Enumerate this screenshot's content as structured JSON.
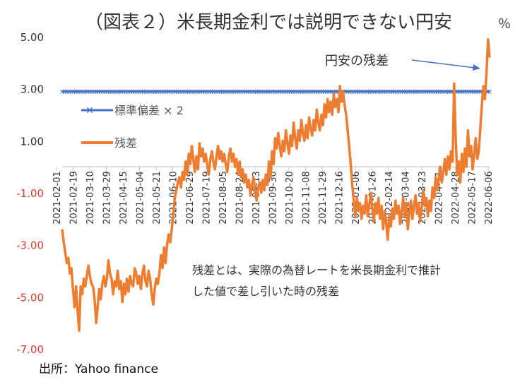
{
  "chart_data": {
    "type": "line",
    "title": "（図表２）米長期金利では説明できない円安",
    "unit_label": "％",
    "source": "出所：Yahoo finance",
    "annotation_arrow": "円安の残差",
    "note_line1": "残差とは、実際の為替レートを米長期金利で推計",
    "note_line2": "した値で差し引いた時の残差",
    "ylim": [
      -7,
      5
    ],
    "y_ticks": [
      "5.00",
      "3.00",
      "1.00",
      "-1.00",
      "-3.00",
      "-5.00",
      "-7.00"
    ],
    "y_tick_values": [
      5,
      3,
      1,
      -1,
      -3,
      -5,
      -7
    ],
    "x_tick_labels": [
      "2021-02-01",
      "2021-02-19",
      "2021-03-10",
      "2021-03-29",
      "2021-04-15",
      "2021-05-04",
      "2021-05-21",
      "2021-06-10",
      "2021-06-29",
      "2021-07-19",
      "2021-08-05",
      "2021-08-24",
      "2021-09-13",
      "2021-09-30",
      "2021-10-20",
      "2021-11-08",
      "2021-11-29",
      "2021-12-16",
      "2022-01-06",
      "2022-01-26",
      "2022-02-14",
      "2022-03-04",
      "2022-03-23",
      "2022-04-11",
      "2022-04-28",
      "2022-05-17",
      "2022-06-06"
    ],
    "series": [
      {
        "name": "標準偏差×２",
        "legend_label": "標準偏差 × 2",
        "color": "#4472C4",
        "marker": "x",
        "values": [
          2.9,
          2.9
        ]
      },
      {
        "name": "残差",
        "legend_label": "残差",
        "color": "#ED7D31",
        "values": [
          -2.4,
          -2.9,
          -3.3,
          -3.7,
          -3.5,
          -4.1,
          -3.9,
          -4.7,
          -5.4,
          -4.6,
          -5.5,
          -6.3,
          -4.6,
          -4.9,
          -4.3,
          -4.6,
          -4.2,
          -3.8,
          -4.2,
          -4.5,
          -4.6,
          -5.1,
          -6.0,
          -5.4,
          -4.7,
          -5.1,
          -4.5,
          -4.2,
          -4.6,
          -4.3,
          -3.6,
          -4.1,
          -4.3,
          -4.9,
          -4.4,
          -4.6,
          -4.0,
          -4.7,
          -4.4,
          -5.2,
          -4.5,
          -4.9,
          -4.3,
          -4.8,
          -4.2,
          -4.5,
          -4.6,
          -3.9,
          -4.1,
          -4.5,
          -4.2,
          -4.7,
          -4.1,
          -3.8,
          -4.4,
          -4.6,
          -4.0,
          -4.3,
          -4.9,
          -5.3,
          -4.7,
          -4.3,
          -4.5,
          -4.1,
          -3.4,
          -3.9,
          -3.1,
          -3.7,
          -3.0,
          -2.6,
          -2.9,
          -2.4,
          -1.8,
          -1.2,
          -0.9,
          -0.6,
          -0.4,
          -0.8,
          -0.2,
          -0.5,
          0.2,
          -0.3,
          0.5,
          0.1,
          0.8,
          0.3,
          -0.2,
          0.4,
          -0.1,
          0.9,
          0.4,
          0.7,
          0.2,
          0.5,
          0.1,
          -0.3,
          0.3,
          0.6,
          0.2,
          -0.1,
          0.4,
          0.8,
          0.3,
          0.6,
          0.2,
          0.5,
          0.1,
          -0.2,
          0.4,
          0.7,
          0.2,
          0.5,
          0.0,
          0.3,
          -0.3,
          0.2,
          -0.4,
          -0.1,
          -0.6,
          -0.3,
          -0.8,
          -0.5,
          -1.1,
          -0.7,
          -0.4,
          -0.9,
          -1.3,
          -0.8,
          -0.6,
          -1.0,
          -0.5,
          -0.9,
          -0.3,
          -0.7,
          0.2,
          -0.4,
          0.6,
          0.1,
          1.1,
          0.7,
          1.3,
          0.8,
          0.4,
          1.0,
          0.6,
          1.4,
          0.9,
          0.5,
          1.2,
          0.8,
          1.7,
          1.1,
          0.7,
          1.4,
          1.0,
          1.8,
          1.3,
          1.0,
          1.6,
          1.1,
          1.9,
          1.5,
          1.2,
          1.8,
          1.4,
          2.2,
          1.7,
          1.4,
          2.0,
          1.6,
          2.4,
          1.9,
          2.6,
          2.1,
          2.5,
          2.0,
          2.8,
          2.3,
          2.6,
          2.1,
          3.1,
          2.5,
          2.9,
          2.4,
          2.0,
          1.4,
          0.8,
          0.1,
          -0.7,
          -1.3,
          -1.9,
          -1.2,
          -1.7,
          -1.4,
          -2.0,
          -1.5,
          -1.8,
          -1.1,
          -1.9,
          -1.5,
          -1.0,
          -1.6,
          -2.1,
          -1.4,
          -1.8,
          -1.2,
          -2.0,
          -1.5,
          -2.4,
          -1.7,
          -2.2,
          -2.8,
          -1.9,
          -2.3,
          -1.6,
          -2.0,
          -1.3,
          -1.8,
          -1.5,
          -2.2,
          -1.7,
          -1.2,
          -1.9,
          -1.4,
          -2.4,
          -1.8,
          -1.3,
          -2.0,
          -1.5,
          -1.1,
          -1.8,
          -1.4,
          -2.1,
          -1.6,
          -0.9,
          -1.5,
          -1.2,
          -1.9,
          -1.3,
          -1.7,
          -0.8,
          -1.2,
          -0.4,
          -0.9,
          -0.5,
          0.0,
          -0.6,
          -0.2,
          0.3,
          -0.3,
          0.4,
          -0.1,
          0.6,
          0.2,
          3.2,
          1.2,
          -0.3,
          0.2,
          -0.6,
          0.5,
          -0.2,
          0.7,
          0.0,
          1.4,
          0.4,
          0.8,
          -0.1,
          0.5,
          1.1,
          0.3,
          0.6,
          1.5,
          2.4,
          3.1,
          2.6,
          3.6,
          4.9,
          4.2
        ]
      }
    ],
    "grid": false,
    "legend": "left-inside"
  }
}
